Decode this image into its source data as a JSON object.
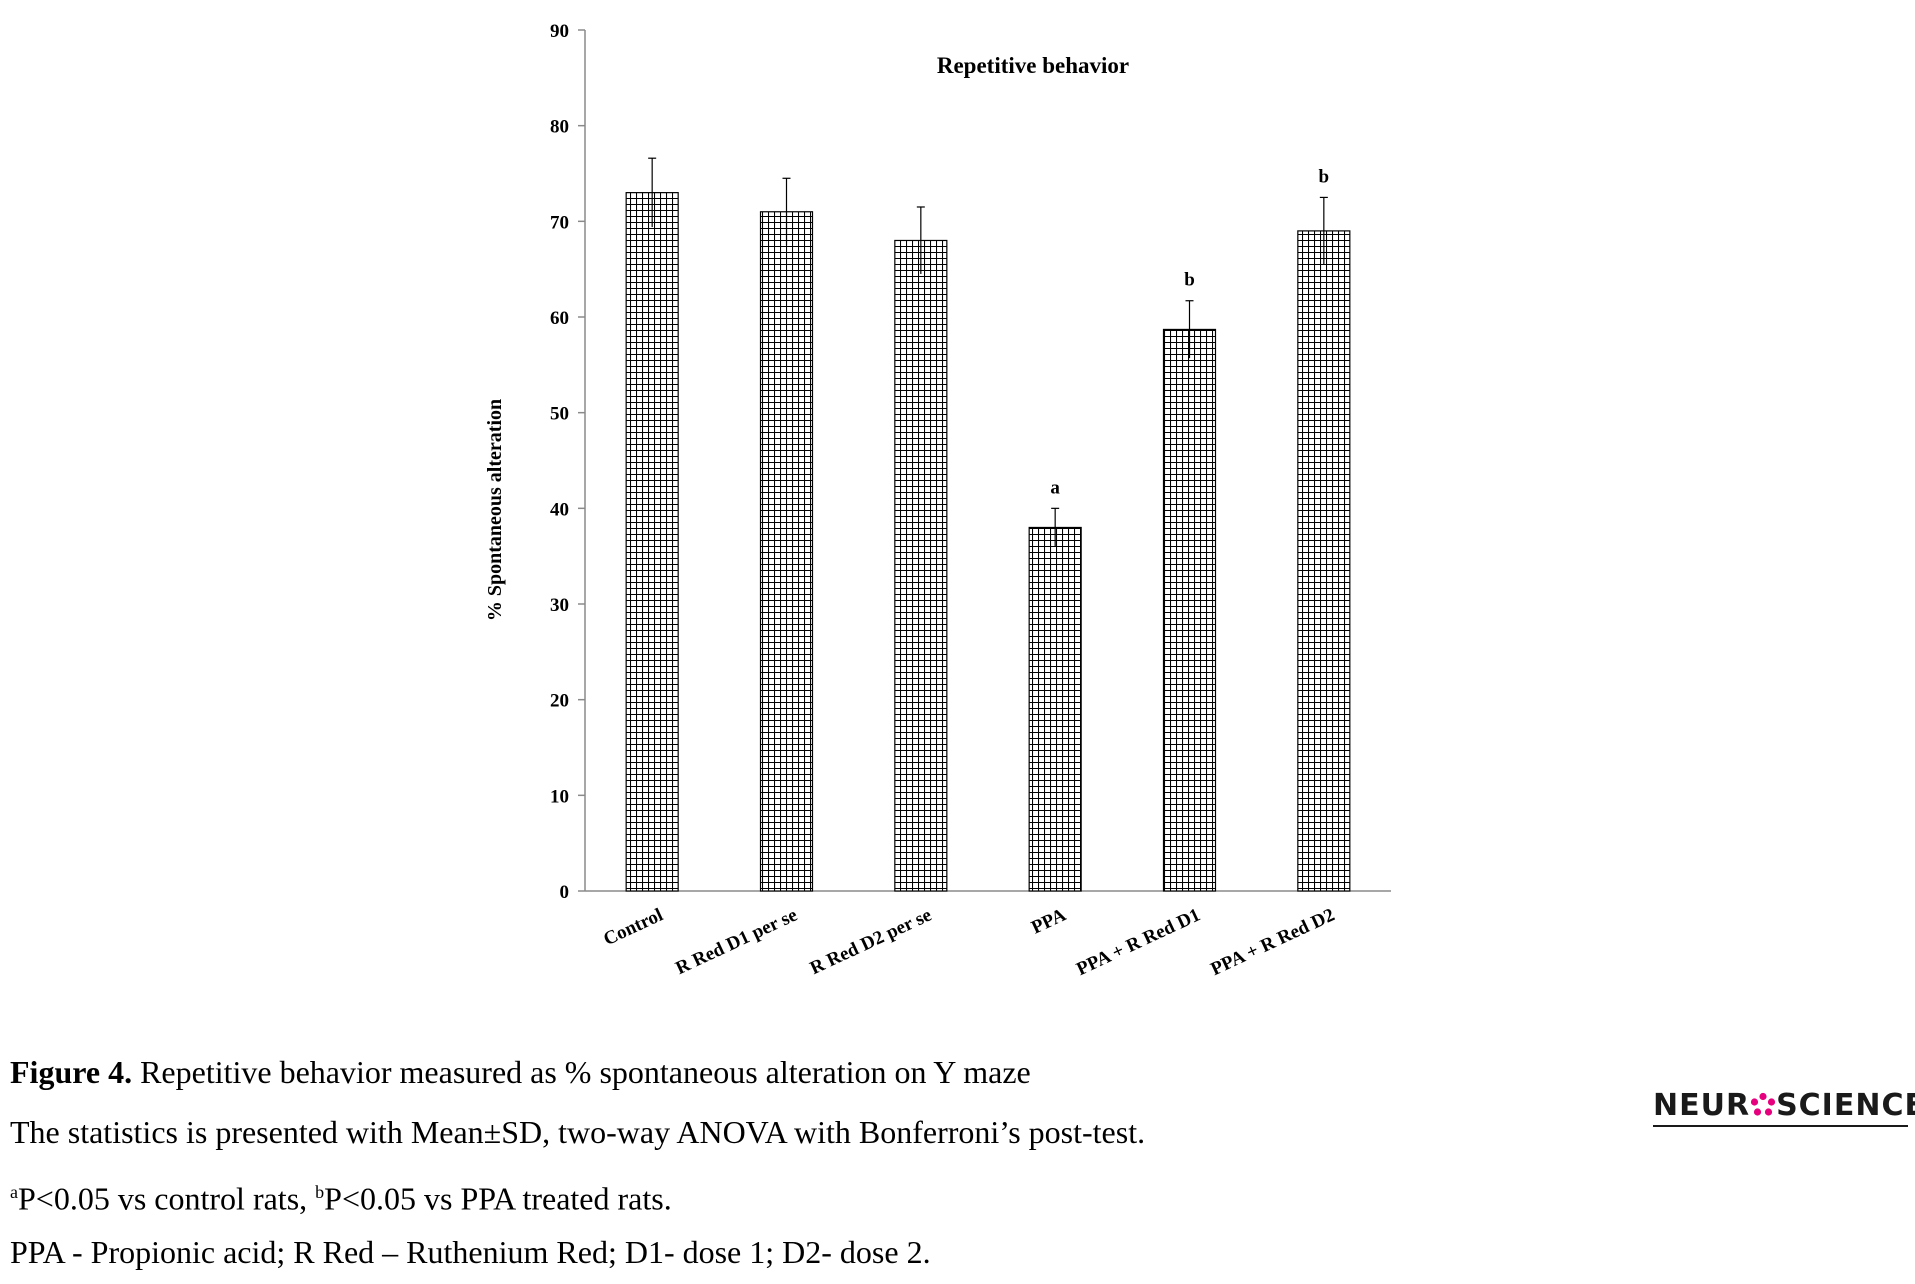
{
  "chart_data": {
    "type": "bar",
    "title": "Repetitive behavior",
    "ylabel": "% Spontaneous alteration",
    "xlabel": "",
    "ylim": [
      0,
      90
    ],
    "yticks": [
      "0",
      "10",
      "20",
      "30",
      "40",
      "50",
      "60",
      "70",
      "80",
      "90"
    ],
    "categories": [
      "Control",
      "R Red D1 per se",
      "R Red D2 per se",
      "PPA",
      "PPA +  R Red D1",
      "PPA +  R Red D2"
    ],
    "values": [
      73,
      71,
      68,
      38,
      58.7,
      69
    ],
    "error": [
      3.6,
      3.5,
      3.5,
      2.0,
      3.0,
      3.5
    ],
    "significance": [
      "",
      "",
      "",
      "a",
      "b",
      "b"
    ],
    "bar_pattern": "grid-hatch",
    "grid": false
  },
  "caption": {
    "figure_label": "Figure 4.",
    "figure_text": " Repetitive behavior measured as % spontaneous alteration on Y maze",
    "line2": "The statistics is presented with Mean±SD, two-way ANOVA with Bonferroni’s post-test.",
    "line3_sup_a": "a",
    "line3_part1": "P<0.05 vs control rats, ",
    "line3_sup_b": "b",
    "line3_part2": "P<0.05 vs PPA treated rats.",
    "line4": "PPA - Propionic acid; R Red – Ruthenium Red; D1- dose 1; D2- dose 2."
  },
  "logo": {
    "part1": "NEUR",
    "part2": "SCIENCE",
    "icon": "flower-icon",
    "accent_color": "#e6007e"
  }
}
